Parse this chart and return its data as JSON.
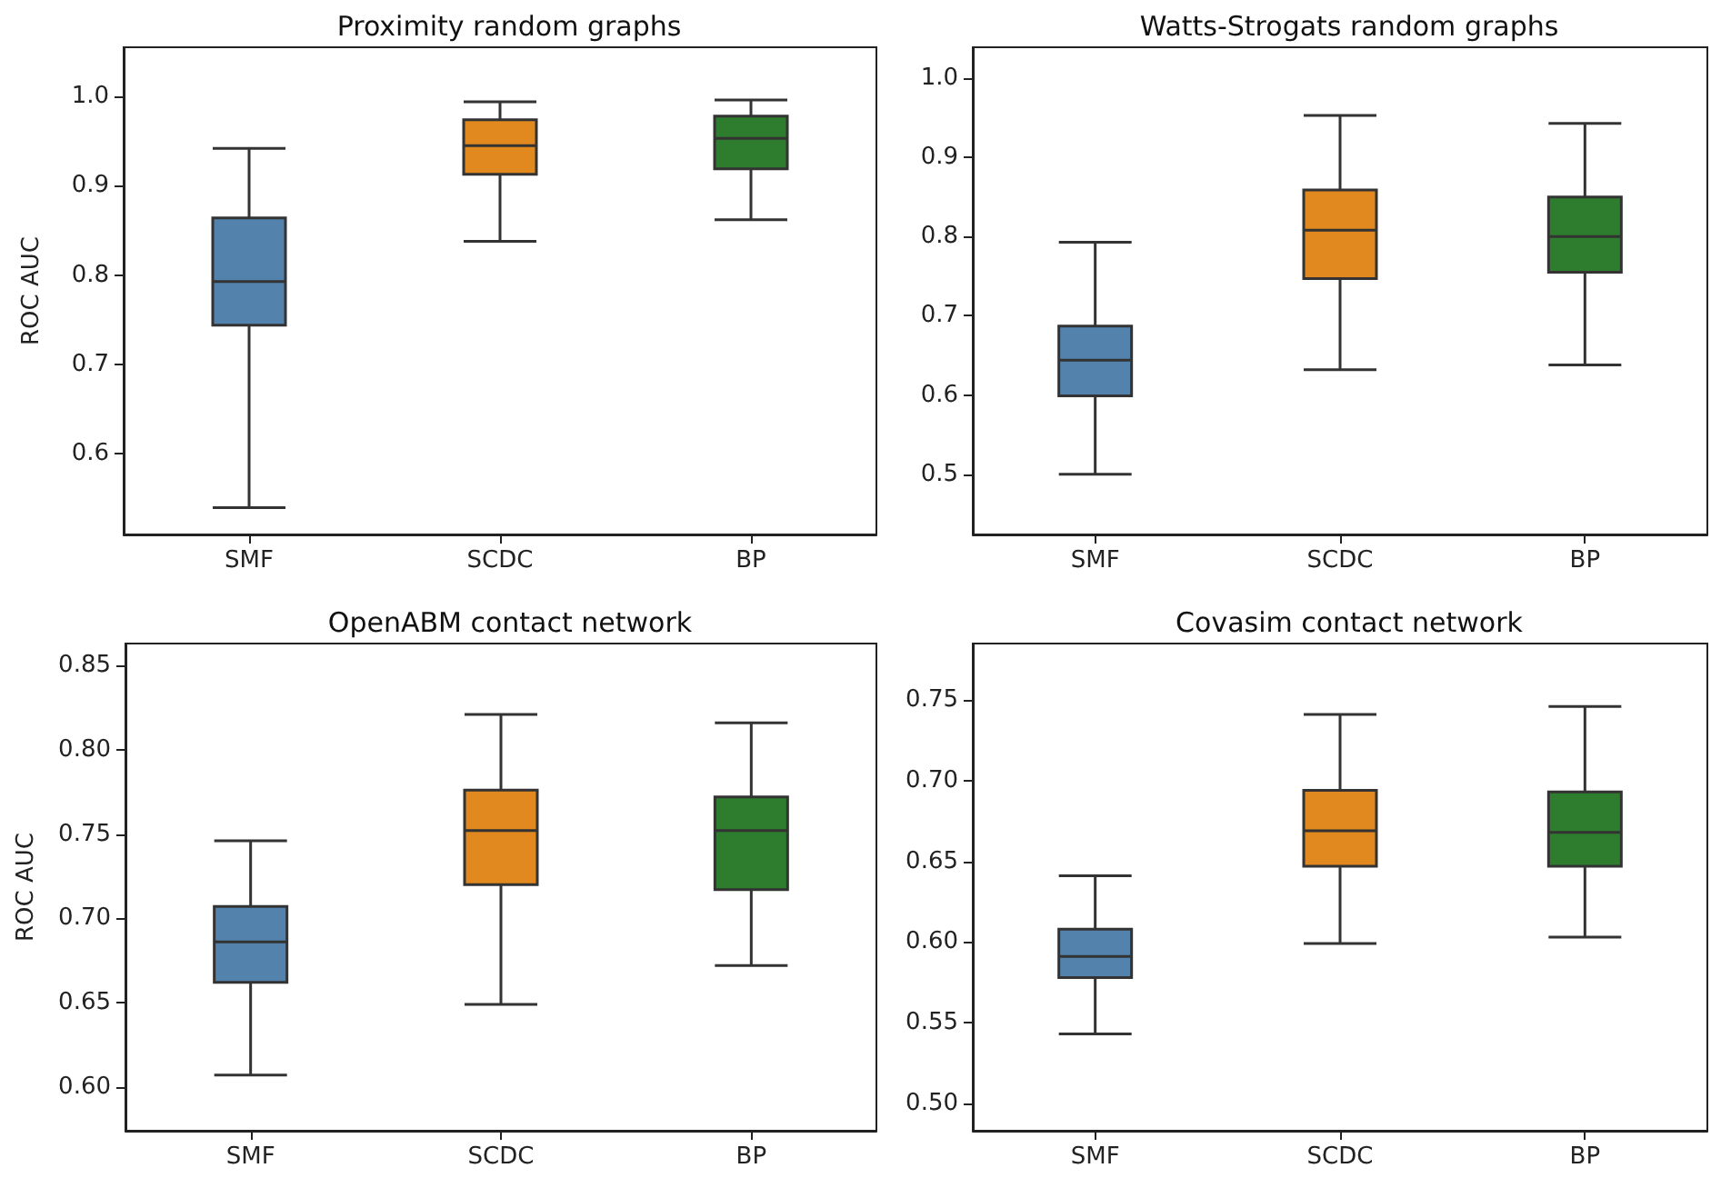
{
  "chart_data": [
    {
      "type": "box",
      "title": "Proximity random graphs",
      "ylabel": "ROC AUC",
      "categories": [
        "SMF",
        "SCDC",
        "BP"
      ],
      "colors": [
        "#5383ad",
        "#e1891f",
        "#2e7d2f"
      ],
      "boxes": [
        {
          "low": 0.54,
          "q1": 0.744,
          "median": 0.793,
          "q3": 0.864,
          "high": 0.942
        },
        {
          "low": 0.838,
          "q1": 0.913,
          "median": 0.945,
          "q3": 0.974,
          "high": 0.994
        },
        {
          "low": 0.862,
          "q1": 0.919,
          "median": 0.953,
          "q3": 0.978,
          "high": 0.996
        }
      ],
      "ylim": [
        0.51,
        1.055
      ],
      "yticks": [
        0.6,
        0.7,
        0.8,
        0.9,
        {
          "value": 1,
          "label": "1.0"
        }
      ],
      "grid": false
    },
    {
      "type": "box",
      "title": "Watts-Strogats random graphs",
      "categories": [
        "SMF",
        "SCDC",
        "BP"
      ],
      "colors": [
        "#5383ad",
        "#e1891f",
        "#2e7d2f"
      ],
      "boxes": [
        {
          "low": 0.5,
          "q1": 0.599,
          "median": 0.644,
          "q3": 0.687,
          "high": 0.793
        },
        {
          "low": 0.632,
          "q1": 0.747,
          "median": 0.808,
          "q3": 0.859,
          "high": 0.953
        },
        {
          "low": 0.638,
          "q1": 0.755,
          "median": 0.8,
          "q3": 0.85,
          "high": 0.943
        }
      ],
      "ylim": [
        0.424,
        1.039
      ],
      "yticks": [
        0.5,
        0.6,
        0.7,
        0.8,
        0.9,
        {
          "value": 1,
          "label": "1.0"
        }
      ],
      "grid": false
    },
    {
      "type": "box",
      "title": "OpenABM contact network",
      "ylabel": "ROC AUC",
      "categories": [
        "SMF",
        "SCDC",
        "BP"
      ],
      "colors": [
        "#5383ad",
        "#e1891f",
        "#2e7d2f"
      ],
      "boxes": [
        {
          "low": 0.607,
          "q1": 0.662,
          "median": 0.686,
          "q3": 0.707,
          "high": 0.746
        },
        {
          "low": 0.649,
          "q1": 0.72,
          "median": 0.752,
          "q3": 0.776,
          "high": 0.821
        },
        {
          "low": 0.672,
          "q1": 0.717,
          "median": 0.752,
          "q3": 0.772,
          "high": 0.816
        }
      ],
      "ylim": [
        0.574,
        0.863
      ],
      "yticks": [
        {
          "value": 0.6,
          "label": "0.60"
        },
        0.65,
        {
          "value": 0.7,
          "label": "0.70"
        },
        0.75,
        {
          "value": 0.8,
          "label": "0.80"
        },
        0.85
      ],
      "grid": false
    },
    {
      "type": "box",
      "title": "Covasim contact network",
      "categories": [
        "SMF",
        "SCDC",
        "BP"
      ],
      "colors": [
        "#5383ad",
        "#e1891f",
        "#2e7d2f"
      ],
      "boxes": [
        {
          "low": 0.543,
          "q1": 0.578,
          "median": 0.591,
          "q3": 0.608,
          "high": 0.641
        },
        {
          "low": 0.599,
          "q1": 0.647,
          "median": 0.669,
          "q3": 0.694,
          "high": 0.741
        },
        {
          "low": 0.603,
          "q1": 0.647,
          "median": 0.668,
          "q3": 0.693,
          "high": 0.746
        }
      ],
      "ylim": [
        0.483,
        0.785
      ],
      "yticks": [
        {
          "value": 0.5,
          "label": "0.50"
        },
        0.55,
        {
          "value": 0.6,
          "label": "0.60"
        },
        0.65,
        {
          "value": 0.7,
          "label": "0.70"
        },
        0.75
      ],
      "grid": false
    }
  ]
}
